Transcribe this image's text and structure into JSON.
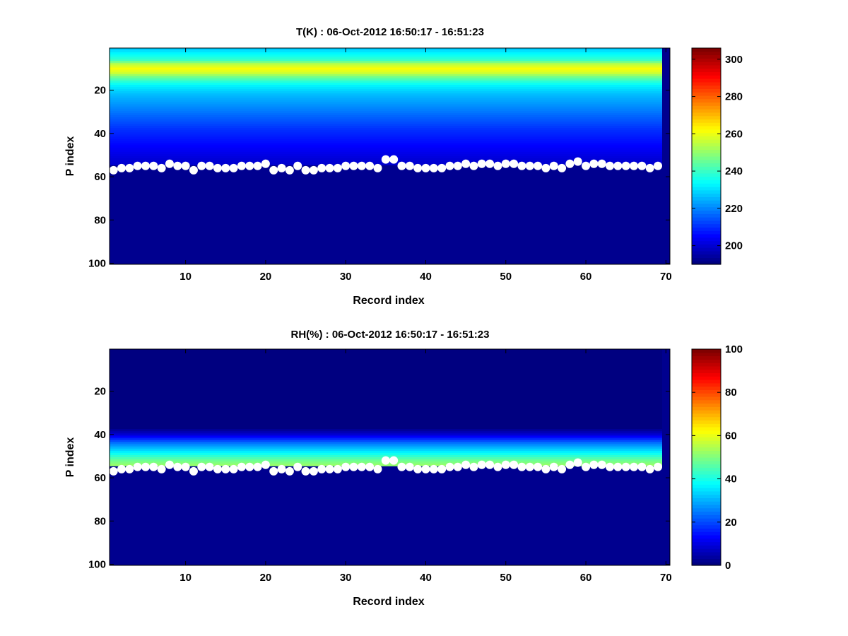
{
  "figure": {
    "background": "#ffffff",
    "frame_color": "#000000",
    "marker_color": "#ffffff",
    "no_data_color": "#00008f"
  },
  "chart_data": [
    {
      "type": "heatmap",
      "title": "T(K) : 06-Oct-2012 16:50:17 - 16:51:23",
      "xlabel": "Record index",
      "ylabel": "P index",
      "xlim": [
        0.5,
        70.5
      ],
      "ylim": [
        100,
        1
      ],
      "y_direction": "reversed",
      "xticks": [
        "10",
        "20",
        "30",
        "40",
        "50",
        "60",
        "70"
      ],
      "yticks": [
        "20",
        "40",
        "60",
        "80",
        "100"
      ],
      "colorbar": {
        "colormap": "jet",
        "range": [
          190,
          306
        ],
        "ticks": [
          "200",
          "220",
          "240",
          "260",
          "280",
          "300"
        ]
      },
      "field_note": "Temperature maximum near P index 8-12 (~262 K), decreasing to ~200-205 K by P index 45-55; below the surface level the field is at the colormap minimum.",
      "profile": [
        [
          1,
          228
        ],
        [
          4,
          235
        ],
        [
          6,
          240
        ],
        [
          8,
          255
        ],
        [
          10,
          262
        ],
        [
          12,
          257
        ],
        [
          14,
          246
        ],
        [
          16,
          238
        ],
        [
          18,
          232
        ],
        [
          22,
          226
        ],
        [
          26,
          222
        ],
        [
          32,
          216
        ],
        [
          38,
          210
        ],
        [
          45,
          205
        ],
        [
          52,
          200
        ],
        [
          56,
          198
        ]
      ],
      "surface_level_p_index": [
        57,
        56,
        56,
        55,
        55,
        55,
        56,
        54,
        55,
        55,
        57,
        55,
        55,
        56,
        56,
        56,
        55,
        55,
        55,
        54,
        57,
        56,
        57,
        55,
        57,
        57,
        56,
        56,
        56,
        55,
        55,
        55,
        55,
        56,
        52,
        52,
        55,
        55,
        56,
        56,
        56,
        56,
        55,
        55,
        54,
        55,
        54,
        54,
        55,
        54,
        54,
        55,
        55,
        55,
        56,
        55,
        56,
        54,
        53,
        55,
        54,
        54,
        55,
        55,
        55,
        55,
        55,
        56,
        55
      ]
    },
    {
      "type": "heatmap",
      "title": "RH(%) : 06-Oct-2012 16:50:17 - 16:51:23",
      "xlabel": "Record index",
      "ylabel": "P index",
      "xlim": [
        0.5,
        70.5
      ],
      "ylim": [
        100,
        1
      ],
      "y_direction": "reversed",
      "xticks": [
        "10",
        "20",
        "30",
        "40",
        "50",
        "60",
        "70"
      ],
      "yticks": [
        "20",
        "40",
        "60",
        "80",
        "100"
      ],
      "colorbar": {
        "colormap": "jet",
        "range": [
          0,
          100
        ],
        "ticks": [
          "0",
          "20",
          "40",
          "60",
          "80",
          "100"
        ]
      },
      "field_note": "Relative humidity near 0% above P index ~38, rising to ~45-55% just above the surface level (P index ~50-55); below the surface level the field is at the colormap minimum.",
      "profile": [
        [
          1,
          0
        ],
        [
          37,
          0
        ],
        [
          40,
          8
        ],
        [
          42,
          16
        ],
        [
          44,
          24
        ],
        [
          46,
          30
        ],
        [
          48,
          36
        ],
        [
          50,
          42
        ],
        [
          52,
          48
        ],
        [
          54,
          52
        ],
        [
          56,
          0
        ]
      ],
      "surface_level_p_index": [
        57,
        56,
        56,
        55,
        55,
        55,
        56,
        54,
        55,
        55,
        57,
        55,
        55,
        56,
        56,
        56,
        55,
        55,
        55,
        54,
        57,
        56,
        57,
        55,
        57,
        57,
        56,
        56,
        56,
        55,
        55,
        55,
        55,
        56,
        52,
        52,
        55,
        55,
        56,
        56,
        56,
        56,
        55,
        55,
        54,
        55,
        54,
        54,
        55,
        54,
        54,
        55,
        55,
        55,
        56,
        55,
        56,
        54,
        53,
        55,
        54,
        54,
        55,
        55,
        55,
        55,
        55,
        56,
        55
      ]
    }
  ]
}
